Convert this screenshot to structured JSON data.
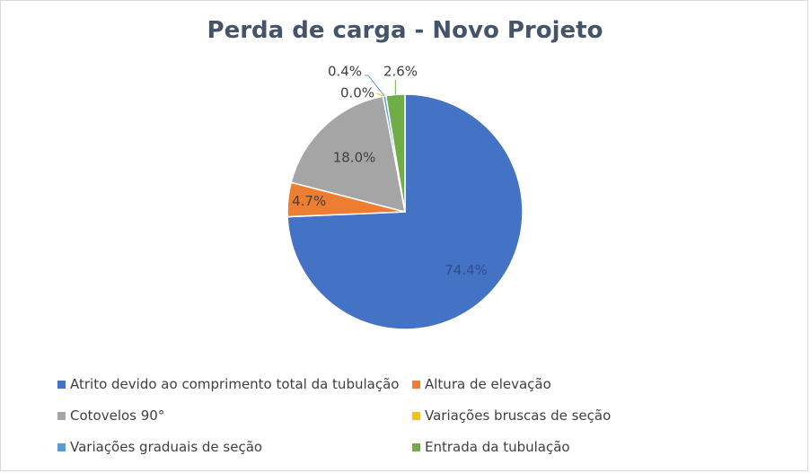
{
  "chart_data": {
    "type": "pie",
    "title": "Perda de carga - Novo Projeto",
    "slices": [
      {
        "name": "Atrito devido ao comprimento total da tubulação",
        "value": 74.4,
        "label": "74.4%",
        "color": "#4472c4"
      },
      {
        "name": "Altura de elevação",
        "value": 4.7,
        "label": "4.7%",
        "color": "#ed7d31"
      },
      {
        "name": "Cotovelos 90°",
        "value": 18.0,
        "label": "18.0%",
        "color": "#a5a5a5"
      },
      {
        "name": "Variações bruscas de seção",
        "value": 0.0,
        "label": "0.0%",
        "color": "#ffc000"
      },
      {
        "name": "Variações graduais de seção",
        "value": 0.4,
        "label": "0.4%",
        "color": "#5b9bd5"
      },
      {
        "name": "Entrada da tubulação",
        "value": 2.6,
        "label": "2.6%",
        "color": "#70ad47"
      }
    ],
    "legend_position": "bottom",
    "start_angle": "12 o'clock, clockwise"
  }
}
